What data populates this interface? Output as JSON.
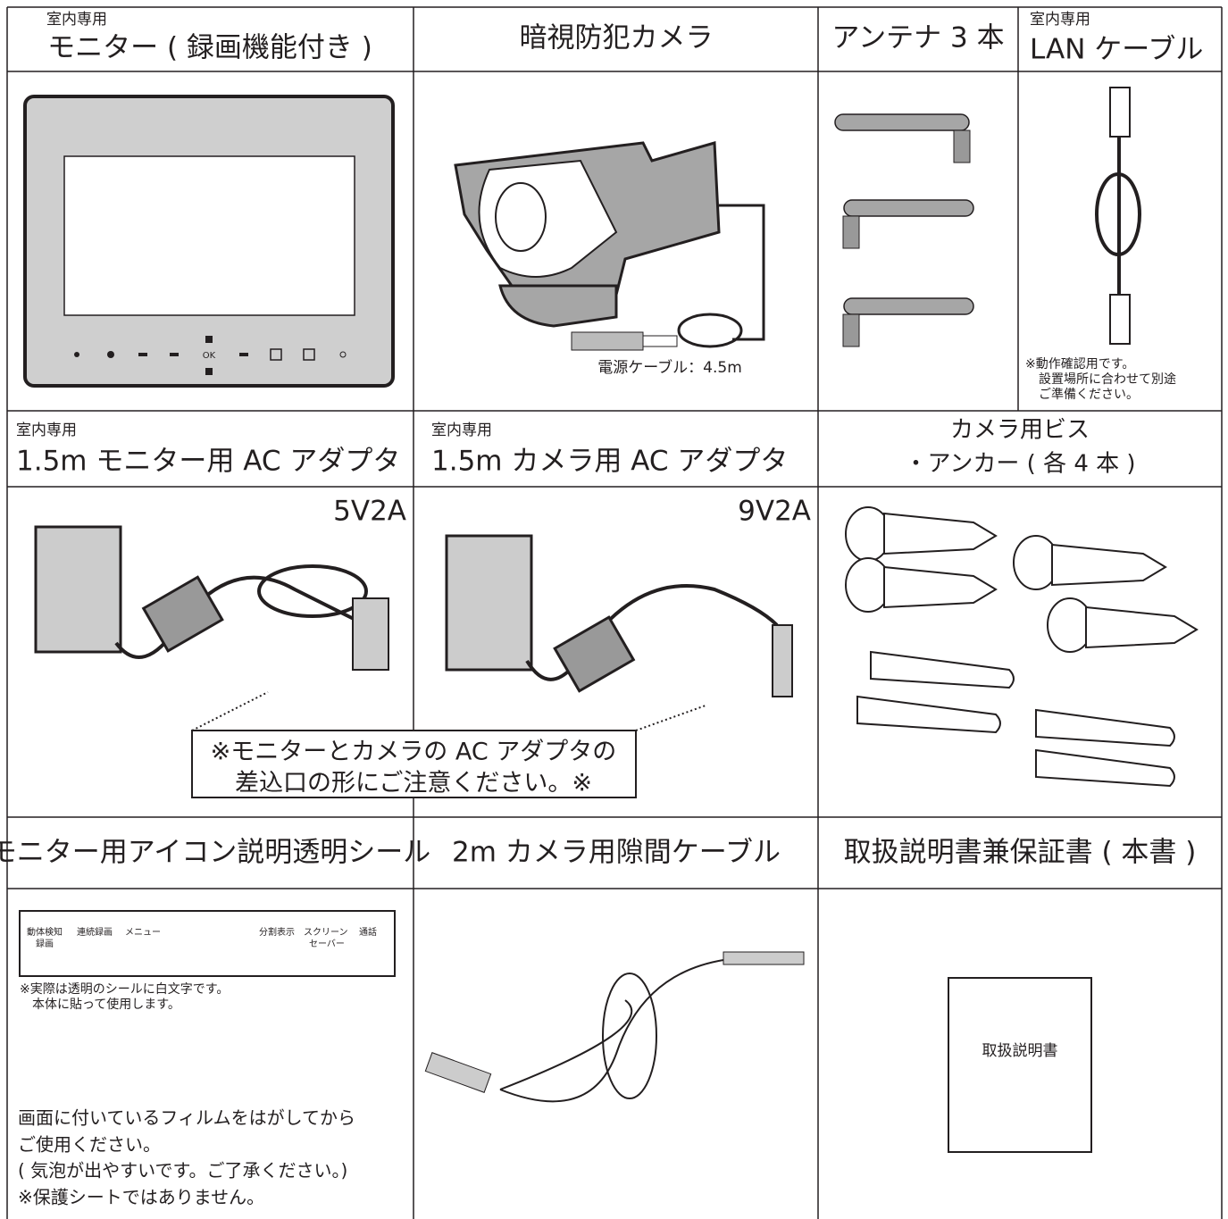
{
  "row1": {
    "monitor": {
      "note": "室内専用",
      "title": "モニター ( 録画機能付き )"
    },
    "camera": {
      "title": "暗視防犯カメラ"
    },
    "antenna": {
      "title": "アンテナ 3 本"
    },
    "lan": {
      "note": "室内専用",
      "title": "LAN ケーブル"
    },
    "monitor_ok": "OK",
    "camera_cable": "電源ケーブル：4.5m",
    "lan_note": [
      "※動作確認用です。",
      "設置場所に合わせて別途",
      "ご準備ください。"
    ]
  },
  "row2": {
    "monitor_adapter": {
      "note": "室内専用",
      "title": "1.5m モニター用 AC アダプタ",
      "spec": "5V2A"
    },
    "camera_adapter": {
      "note": "室内専用",
      "title": "1.5m カメラ用 AC アダプタ",
      "spec": "9V2A"
    },
    "screws": {
      "title": [
        "カメラ用ビス",
        "・アンカー ( 各 4 本 )"
      ]
    },
    "notice": [
      "※モニターとカメラの AC アダプタの",
      "差込口の形にご注意ください。※"
    ]
  },
  "row3": {
    "sticker": {
      "title": "モニター用アイコン説明透明シール",
      "labels": [
        "動体検知",
        "録画",
        "連続録画",
        "メニュー",
        "分割表示",
        "スクリーン",
        "セーバー",
        "通話"
      ],
      "note": [
        "※実際は透明のシールに白文字です。",
        "本体に貼って使用します。"
      ],
      "film_note": [
        "画面に付いているフィルムをはがしてから",
        "ご使用ください。",
        "( 気泡が出やすいです。ご了承ください。)",
        "※保護シートではありません。"
      ]
    },
    "cable": {
      "title": "2m カメラ用隙間ケーブル"
    },
    "manual": {
      "title": "取扱説明書兼保証書 ( 本書 )",
      "label": "取扱説明書"
    }
  }
}
